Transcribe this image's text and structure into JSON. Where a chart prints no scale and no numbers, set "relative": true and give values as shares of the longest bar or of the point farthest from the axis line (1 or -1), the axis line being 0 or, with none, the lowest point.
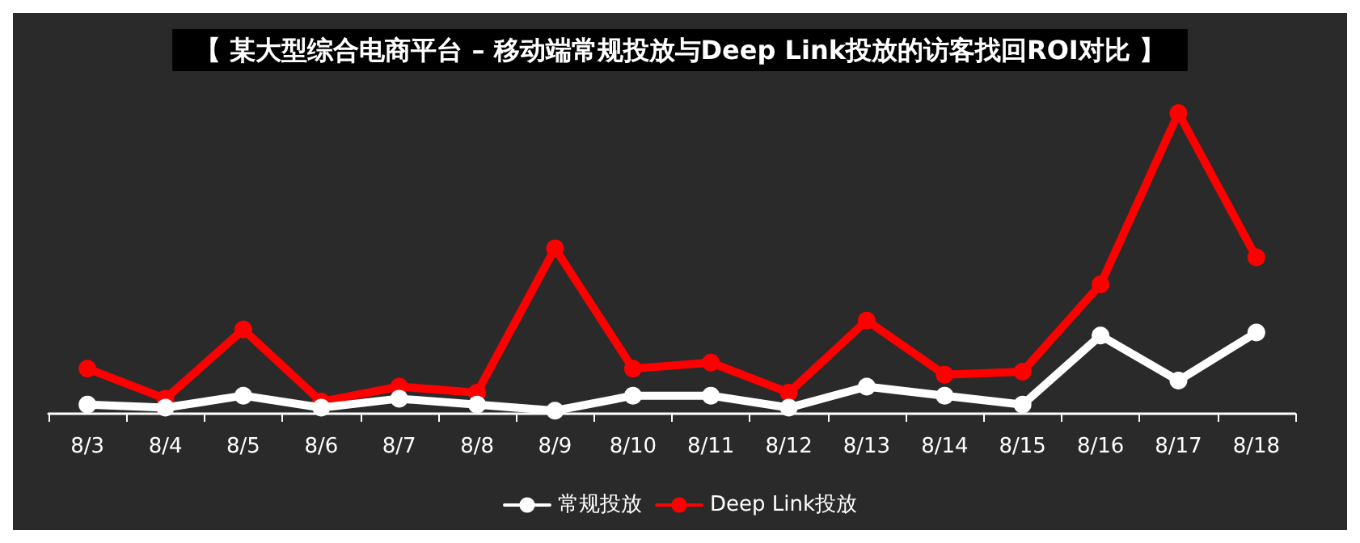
{
  "chart_data": {
    "type": "line",
    "title": "【 某大型综合电商平台 – 移动端常规投放与Deep Link投放的访客找回ROI对比 】",
    "categories": [
      "8/3",
      "8/4",
      "8/5",
      "8/6",
      "8/7",
      "8/8",
      "8/9",
      "8/10",
      "8/11",
      "8/12",
      "8/13",
      "8/14",
      "8/15",
      "8/16",
      "8/17",
      "8/18"
    ],
    "series": [
      {
        "name": "常规投放",
        "color": "#ffffff",
        "values": [
          0.03,
          0.02,
          0.06,
          0.02,
          0.05,
          0.03,
          0.01,
          0.06,
          0.06,
          0.02,
          0.09,
          0.06,
          0.03,
          0.26,
          0.11,
          0.27
        ]
      },
      {
        "name": "Deep Link投放",
        "color": "#ff0000",
        "values": [
          0.15,
          0.05,
          0.28,
          0.04,
          0.09,
          0.07,
          0.55,
          0.15,
          0.17,
          0.07,
          0.31,
          0.13,
          0.14,
          0.43,
          1,
          0.52
        ]
      }
    ],
    "relative": true,
    "legend": "bottom",
    "marker": "circle",
    "line_style": "solid",
    "grid": false
  }
}
